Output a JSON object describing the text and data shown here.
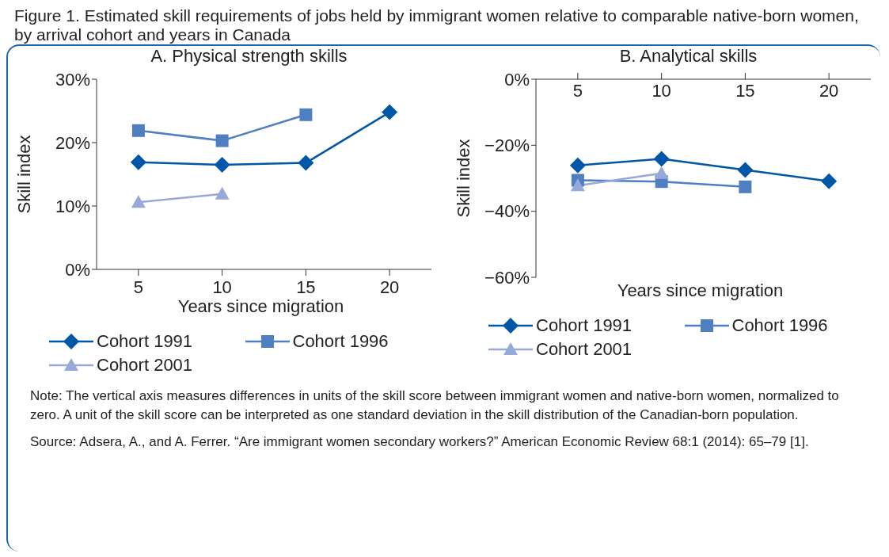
{
  "chart_data": [
    {
      "type": "line",
      "title": "Figure 1. Estimated skill requirements of jobs held by immigrant women relative to comparable native-born women, by arrival cohort and years in Canada",
      "subtitle": "A. Physical strength skills",
      "xlabel": "Years since migration",
      "ylabel": "Skill index",
      "categories": [
        "5",
        "10",
        "15",
        "20"
      ],
      "series": [
        {
          "name": "Cohort 1991",
          "color": "#0057a8",
          "marker": "diamond",
          "values": [
            16.9,
            16.5,
            16.8,
            24.8
          ]
        },
        {
          "name": "Cohort 1996",
          "color": "#4f7fc0",
          "marker": "square",
          "values": [
            21.9,
            20.3,
            24.4,
            null
          ]
        },
        {
          "name": "Cohort 2001",
          "color": "#97a9d8",
          "marker": "triangle",
          "values": [
            10.6,
            11.9,
            null,
            null
          ]
        }
      ],
      "ylim": [
        0,
        30
      ],
      "yticks": [
        {
          "value": 0,
          "label": "0%"
        },
        {
          "value": 10,
          "label": "10%"
        },
        {
          "value": 20,
          "label": "20%"
        },
        {
          "value": 30,
          "label": "30%"
        }
      ],
      "legend": "bottom"
    },
    {
      "type": "line",
      "title": "B. Analytical skills",
      "xlabel": "Years since migration",
      "ylabel": "Skill index",
      "categories": [
        "5",
        "10",
        "15",
        "20"
      ],
      "series": [
        {
          "name": "Cohort 1991",
          "color": "#0057a8",
          "marker": "diamond",
          "values": [
            -26.1,
            -24.1,
            -27.5,
            -30.9
          ]
        },
        {
          "name": "Cohort 1996",
          "color": "#4f7fc0",
          "marker": "square",
          "values": [
            -30.6,
            -31.0,
            -32.6,
            null
          ]
        },
        {
          "name": "Cohort 2001",
          "color": "#97a9d8",
          "marker": "triangle",
          "values": [
            -32.2,
            -28.5,
            null,
            null
          ]
        }
      ],
      "ylim": [
        -60,
        0
      ],
      "yticks": [
        {
          "value": -60,
          "label": "−60%"
        },
        {
          "value": -40,
          "label": "−40%"
        },
        {
          "value": -20,
          "label": "−20%"
        },
        {
          "value": 0,
          "label": "0%"
        }
      ],
      "legend": "bottom",
      "annotations": [
        "Note: The vertical axis measures differences in units of the skill score between immigrant women and native-born women, normalized to zero. A unit of the skill score can be interpreted as one standard deviation in the skill distribution of the Canadian-born population.",
        "Source: Adsera, A., and A. Ferrer. “Are immigrant women secondary workers?” American Economic Review 68:1 (2014): 65–79 [1]."
      ]
    }
  ]
}
